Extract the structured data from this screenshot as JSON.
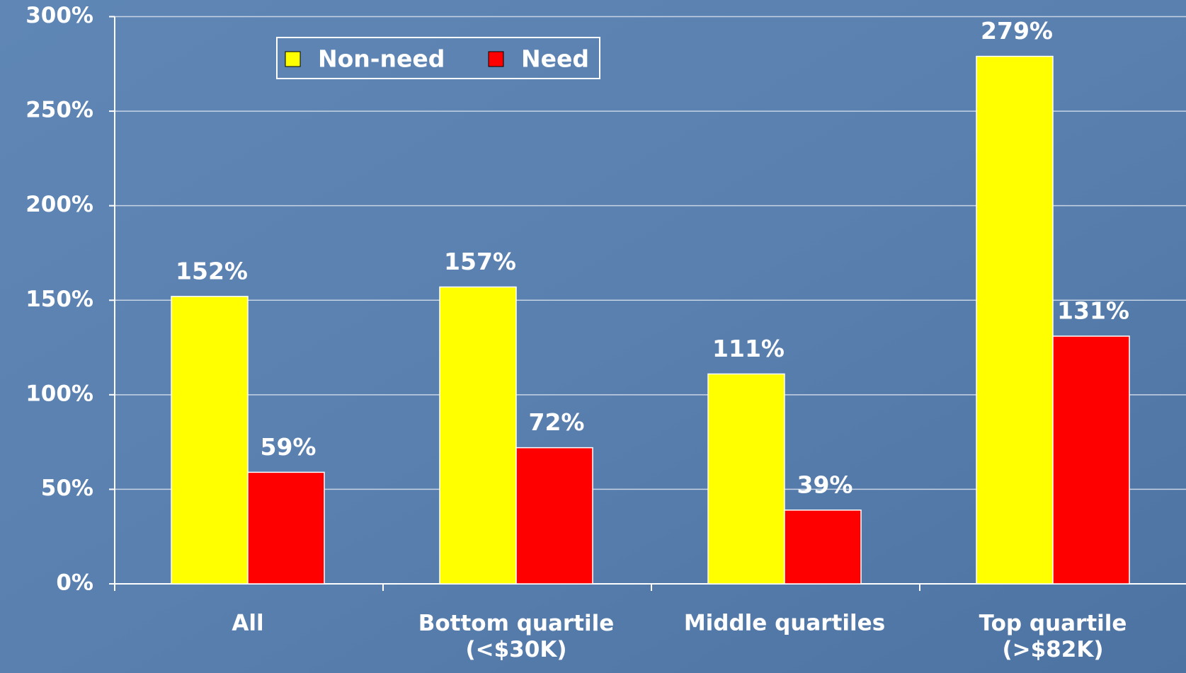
{
  "chart_data": {
    "type": "bar",
    "categories": [
      "All",
      "Bottom quartile\n(<$30K)",
      "Middle quartiles",
      "Top quartile\n(>$82K)"
    ],
    "series": [
      {
        "name": "Non-need",
        "color": "#ffff00",
        "values": [
          152,
          157,
          111,
          279
        ],
        "value_labels": [
          "152%",
          "157%",
          "111%",
          "279%"
        ]
      },
      {
        "name": "Need",
        "color": "#ff0000",
        "values": [
          59,
          72,
          39,
          131
        ],
        "value_labels": [
          "59%",
          "72%",
          "39%",
          "131%"
        ]
      }
    ],
    "ylim": [
      0,
      300
    ],
    "yticks": [
      {
        "value": 0,
        "label": "0%"
      },
      {
        "value": 50,
        "label": "50%"
      },
      {
        "value": 100,
        "label": "100%"
      },
      {
        "value": 150,
        "label": "150%"
      },
      {
        "value": 200,
        "label": "200%"
      },
      {
        "value": 250,
        "label": "250%"
      },
      {
        "value": 300,
        "label": "300%"
      }
    ],
    "grid": true,
    "legend": "top-left"
  }
}
